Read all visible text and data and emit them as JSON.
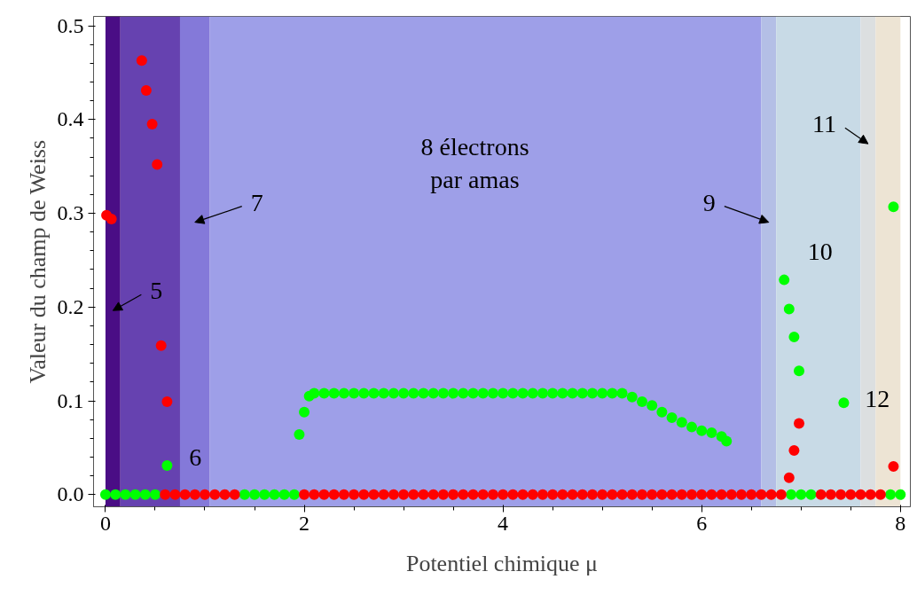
{
  "chart_data": {
    "type": "scatter",
    "xlabel": "Potentiel chimique μ",
    "ylabel": "Valeur du champ de Weiss",
    "xlim": [
      -0.12,
      8.1
    ],
    "ylim": [
      -0.013,
      0.51
    ],
    "xticks": [
      0,
      2,
      4,
      6,
      8
    ],
    "yticks": [
      {
        "value": 0,
        "label": "0.0"
      },
      {
        "value": 0.1,
        "label": "0.1"
      },
      {
        "value": 0.2,
        "label": "0.2"
      },
      {
        "value": 0.3,
        "label": "0.3"
      },
      {
        "value": 0.4,
        "label": "0.4"
      },
      {
        "value": 0.5,
        "label": "0.5"
      }
    ],
    "marker": "circle",
    "bands": [
      {
        "axis": "x",
        "from": 0,
        "to": 0.15,
        "color": "#4a0d85",
        "label": "5"
      },
      {
        "axis": "x",
        "from": 0.15,
        "to": 0.75,
        "color": "#6642b0",
        "label": "6"
      },
      {
        "axis": "x",
        "from": 0.75,
        "to": 1.05,
        "color": "#8479d9",
        "label": "7"
      },
      {
        "axis": "x",
        "from": 1.05,
        "to": 6.6,
        "color": "#9e9fe8",
        "label": "8 électrons\npar amas"
      },
      {
        "axis": "x",
        "from": 6.6,
        "to": 6.75,
        "color": "#b4bfe6",
        "label": "9"
      },
      {
        "axis": "x",
        "from": 6.75,
        "to": 7.6,
        "color": "#c8dae6",
        "label": "10"
      },
      {
        "axis": "x",
        "from": 7.6,
        "to": 7.75,
        "color": "#dcdfe0",
        "label": "11"
      },
      {
        "axis": "x",
        "from": 7.75,
        "to": 8,
        "color": "#ede4d4",
        "label": "12"
      }
    ],
    "series": [
      {
        "color": "#00ff00",
        "x": [
          0,
          0.1,
          0.2,
          0.3,
          0.4,
          0.5,
          1.4,
          1.5,
          1.6,
          1.7,
          1.8,
          1.9,
          6.9,
          7.0,
          7.1,
          7.9,
          8.0,
          0.62,
          1.95,
          2.0,
          2.05,
          2.1,
          2.2,
          2.3,
          2.4,
          2.5,
          2.6,
          2.7,
          2.8,
          2.9,
          3.0,
          3.1,
          3.2,
          3.3,
          3.4,
          3.5,
          3.6,
          3.7,
          3.8,
          3.9,
          4.0,
          4.1,
          4.2,
          4.3,
          4.4,
          4.5,
          4.6,
          4.7,
          4.8,
          4.9,
          5.0,
          5.1,
          5.2,
          5.3,
          5.4,
          5.5,
          5.6,
          5.7,
          5.8,
          5.9,
          6.0,
          6.1,
          6.2,
          6.25,
          6.83,
          6.88,
          6.93,
          6.98,
          7.43,
          7.93
        ],
        "values": [
          0,
          0,
          0,
          0,
          0,
          0,
          0,
          0,
          0,
          0,
          0,
          0,
          0,
          0,
          0,
          0,
          0,
          0.031,
          0.064,
          0.088,
          0.105,
          0.108,
          0.108,
          0.108,
          0.108,
          0.108,
          0.108,
          0.108,
          0.108,
          0.108,
          0.108,
          0.108,
          0.108,
          0.108,
          0.108,
          0.108,
          0.108,
          0.108,
          0.108,
          0.108,
          0.108,
          0.108,
          0.108,
          0.108,
          0.108,
          0.108,
          0.108,
          0.108,
          0.108,
          0.108,
          0.108,
          0.108,
          0.108,
          0.104,
          0.099,
          0.095,
          0.088,
          0.082,
          0.077,
          0.072,
          0.068,
          0.066,
          0.062,
          0.057,
          0.229,
          0.198,
          0.168,
          0.132,
          0.098,
          0.307
        ]
      },
      {
        "color": "#ff0000",
        "x": [
          0.01,
          0.06,
          0.365,
          0.41,
          0.47,
          0.52,
          0.56,
          0.62,
          6.88,
          6.93,
          6.98,
          7.93,
          0.6,
          0.7,
          0.8,
          0.9,
          1.0,
          1.1,
          1.2,
          1.3,
          2.0,
          2.1,
          2.2,
          2.3,
          2.4,
          2.5,
          2.6,
          2.7,
          2.8,
          2.9,
          3.0,
          3.1,
          3.2,
          3.3,
          3.4,
          3.5,
          3.6,
          3.7,
          3.8,
          3.9,
          4.0,
          4.1,
          4.2,
          4.3,
          4.4,
          4.5,
          4.6,
          4.7,
          4.8,
          4.9,
          5.0,
          5.1,
          5.2,
          5.3,
          5.4,
          5.5,
          5.6,
          5.7,
          5.8,
          5.9,
          6.0,
          6.1,
          6.2,
          6.3,
          6.4,
          6.5,
          6.6,
          6.7,
          6.8,
          7.2,
          7.3,
          7.4,
          7.5,
          7.6,
          7.7,
          7.8
        ],
        "values": [
          0.298,
          0.294,
          0.463,
          0.431,
          0.395,
          0.352,
          0.159,
          0.099,
          0.018,
          0.047,
          0.076,
          0.03,
          0,
          0,
          0,
          0,
          0,
          0,
          0,
          0,
          0,
          0,
          0,
          0,
          0,
          0,
          0,
          0,
          0,
          0,
          0,
          0,
          0,
          0,
          0,
          0,
          0,
          0,
          0,
          0,
          0,
          0,
          0,
          0,
          0,
          0,
          0,
          0,
          0,
          0,
          0,
          0,
          0,
          0,
          0,
          0,
          0,
          0,
          0,
          0,
          0,
          0,
          0,
          0,
          0,
          0,
          0,
          0,
          0,
          0,
          0,
          0,
          0,
          0,
          0,
          0
        ]
      }
    ]
  }
}
